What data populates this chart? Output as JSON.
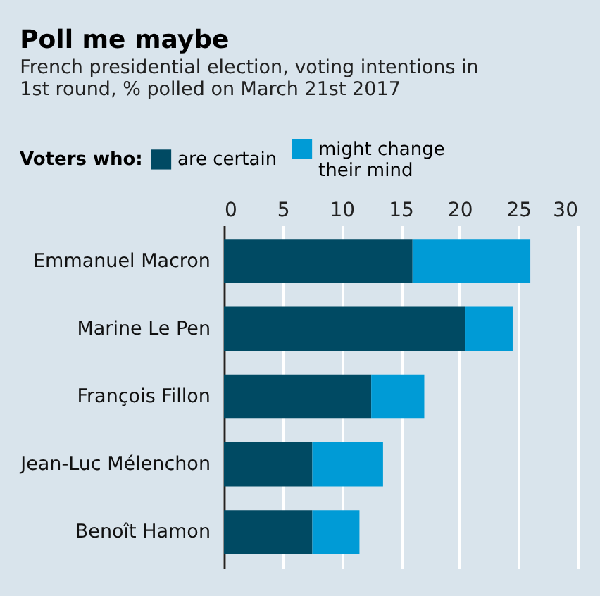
{
  "chart_data": {
    "type": "bar",
    "orientation": "horizontal",
    "stacked": true,
    "title": "Poll me maybe",
    "subtitle": "French presidential election, voting intentions in 1st round, % polled on March 21st 2017",
    "legend_title": "Voters who:",
    "categories": [
      "Emmanuel Macron",
      "Marine Le Pen",
      "François Fillon",
      "Jean-Luc Mélenchon",
      "Benoît Hamon"
    ],
    "series": [
      {
        "name": "are certain",
        "color": "#004a63",
        "values": [
          16,
          20.5,
          12.5,
          7.5,
          7.5
        ]
      },
      {
        "name": "might change their mind",
        "color": "#009bd6",
        "values": [
          10,
          4,
          4.5,
          6,
          4
        ]
      }
    ],
    "xlim": [
      0,
      30
    ],
    "xticks": [
      0,
      5,
      10,
      15,
      20,
      25,
      30
    ],
    "grid": "x",
    "legend": "top"
  }
}
